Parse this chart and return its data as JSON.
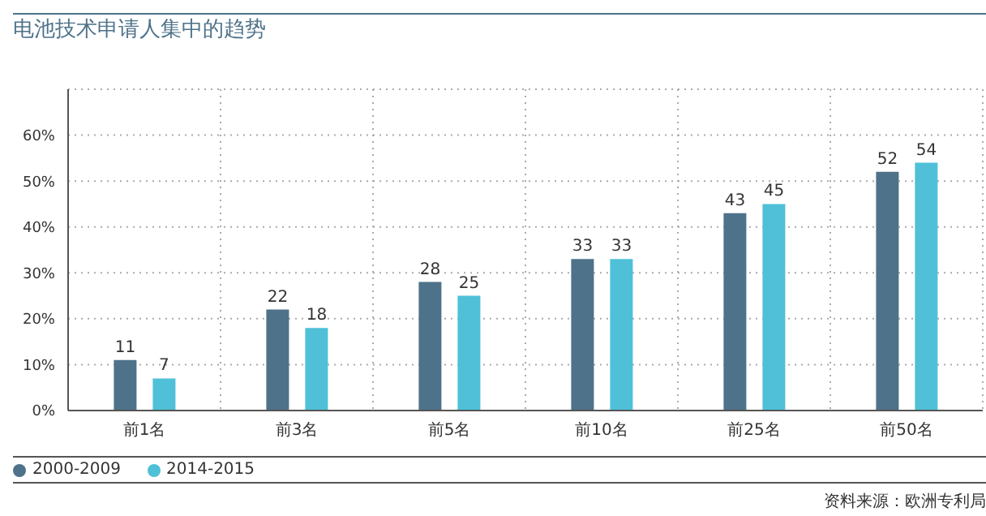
{
  "chart_data": {
    "type": "bar",
    "title": "电池技术申请人集中的趋势",
    "categories": [
      "前1名",
      "前3名",
      "前5名",
      "前10名",
      "前25名",
      "前50名"
    ],
    "series": [
      {
        "name": "2000-2009",
        "color": "#4e7289",
        "values": [
          11,
          22,
          28,
          33,
          43,
          52
        ]
      },
      {
        "name": "2014-2015",
        "color": "#4fc0d8",
        "values": [
          7,
          18,
          25,
          33,
          45,
          54
        ]
      }
    ],
    "ylim": [
      0,
      70
    ],
    "yticks": [
      {
        "value": 0,
        "label": "0%"
      },
      {
        "value": 10,
        "label": "10%"
      },
      {
        "value": 20,
        "label": "20%"
      },
      {
        "value": 30,
        "label": "30%"
      },
      {
        "value": 40,
        "label": "40%"
      },
      {
        "value": 50,
        "label": "50%"
      },
      {
        "value": 60,
        "label": "60%"
      }
    ],
    "grid": true,
    "legend": "bottom left",
    "data_labels": true,
    "annotations": [
      "资料来源：欧洲专利局"
    ]
  }
}
